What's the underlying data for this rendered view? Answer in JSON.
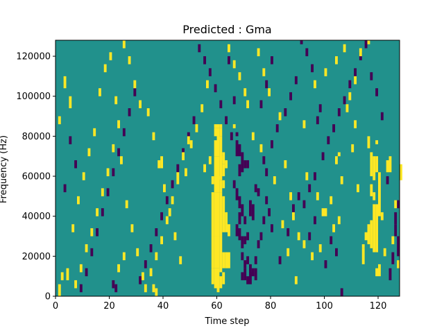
{
  "chart_data": {
    "type": "heatmap",
    "title": "Predicted : Gma",
    "xlabel": "Time step",
    "ylabel": "Frequency (Hz)",
    "xlim": [
      0,
      128
    ],
    "ylim": [
      0,
      128000
    ],
    "xticks": [
      0,
      20,
      40,
      60,
      80,
      100,
      120
    ],
    "yticks": [
      0,
      20000,
      40000,
      60000,
      80000,
      100000,
      120000
    ],
    "colors": {
      "background": "#21918c",
      "high": "#fde725",
      "low": "#440154"
    },
    "cell_size": {
      "time_step": 1,
      "frequency_hz": 2000
    },
    "background_level": 0,
    "high_cells": [
      [
        59,
        84000,
        86000
      ],
      [
        60,
        84000,
        86000
      ],
      [
        61,
        84000,
        86000
      ],
      [
        59,
        80000,
        84000
      ],
      [
        60,
        78000,
        84000
      ],
      [
        61,
        80000,
        84000
      ],
      [
        59,
        70000,
        78000
      ],
      [
        60,
        70000,
        80000
      ],
      [
        61,
        68000,
        80000
      ],
      [
        62,
        66000,
        72000
      ],
      [
        59,
        60000,
        70000
      ],
      [
        60,
        58000,
        70000
      ],
      [
        61,
        58000,
        70000
      ],
      [
        62,
        60000,
        66000
      ],
      [
        58,
        56000,
        60000
      ],
      [
        59,
        52000,
        60000
      ],
      [
        60,
        52000,
        60000
      ],
      [
        61,
        52000,
        58000
      ],
      [
        62,
        54000,
        58000
      ],
      [
        58,
        30000,
        52000
      ],
      [
        59,
        30000,
        52000
      ],
      [
        60,
        30000,
        52000
      ],
      [
        61,
        30000,
        52000
      ],
      [
        62,
        32000,
        50000
      ],
      [
        58,
        14000,
        30000
      ],
      [
        59,
        14000,
        30000
      ],
      [
        60,
        14000,
        30000
      ],
      [
        61,
        12000,
        30000
      ],
      [
        62,
        14000,
        22000
      ],
      [
        58,
        6000,
        14000
      ],
      [
        59,
        4000,
        14000
      ],
      [
        60,
        2000,
        14000
      ],
      [
        61,
        4000,
        10000
      ],
      [
        62,
        6000,
        12000
      ],
      [
        63,
        14000,
        22000
      ],
      [
        64,
        14000,
        22000
      ],
      [
        63,
        32000,
        42000
      ],
      [
        64,
        30000,
        36000
      ],
      [
        63,
        64000,
        68000
      ],
      [
        57,
        66000,
        70000
      ],
      [
        66,
        84000,
        86000
      ],
      [
        118,
        22000,
        46000
      ],
      [
        119,
        22000,
        46000
      ],
      [
        117,
        24000,
        38000
      ],
      [
        120,
        40000,
        56000
      ],
      [
        116,
        26000,
        36000
      ],
      [
        114,
        24000,
        26000
      ],
      [
        119,
        10000,
        14000
      ],
      [
        120,
        10000,
        16000
      ],
      [
        115,
        28000,
        32000
      ],
      [
        114,
        16000,
        24000
      ],
      [
        117,
        60000,
        72000
      ],
      [
        118,
        58000,
        70000
      ],
      [
        119,
        62000,
        70000
      ],
      [
        120,
        56000,
        62000
      ],
      [
        117,
        50000,
        56000
      ],
      [
        118,
        48000,
        52000
      ],
      [
        116,
        74000,
        80000
      ],
      [
        119,
        76000,
        78000
      ],
      [
        124,
        62000,
        70000
      ],
      [
        125,
        26000,
        30000
      ],
      [
        121,
        38000,
        42000
      ],
      [
        127,
        14000,
        18000
      ],
      [
        122,
        20000,
        24000
      ],
      [
        123,
        62000,
        68000
      ],
      [
        128,
        58000,
        66000
      ],
      [
        126,
        44000,
        48000
      ],
      [
        112,
        52000,
        56000
      ],
      [
        110,
        72000,
        76000
      ],
      [
        111,
        84000,
        88000
      ],
      [
        106,
        56000,
        60000
      ],
      [
        105,
        70000,
        72000
      ],
      [
        92,
        84000,
        88000
      ],
      [
        85,
        64000,
        68000
      ],
      [
        87,
        48000,
        52000
      ],
      [
        88,
        38000,
        42000
      ],
      [
        90,
        28000,
        32000
      ],
      [
        92,
        24000,
        28000
      ],
      [
        95,
        18000,
        22000
      ],
      [
        98,
        22000,
        26000
      ],
      [
        100,
        40000,
        44000
      ],
      [
        102,
        46000,
        50000
      ],
      [
        104,
        66000,
        70000
      ],
      [
        108,
        92000,
        96000
      ],
      [
        109,
        98000,
        102000
      ],
      [
        111,
        106000,
        110000
      ],
      [
        113,
        120000,
        124000
      ],
      [
        116,
        126000,
        128000
      ],
      [
        96,
        104000,
        108000
      ],
      [
        100,
        110000,
        114000
      ],
      [
        104,
        116000,
        120000
      ],
      [
        107,
        122000,
        126000
      ],
      [
        83,
        88000,
        92000
      ],
      [
        79,
        100000,
        104000
      ],
      [
        77,
        110000,
        114000
      ],
      [
        75,
        120000,
        124000
      ],
      [
        70,
        100000,
        104000
      ],
      [
        68,
        108000,
        112000
      ],
      [
        66,
        114000,
        118000
      ],
      [
        64,
        122000,
        126000
      ],
      [
        56,
        104000,
        108000
      ],
      [
        54,
        92000,
        96000
      ],
      [
        52,
        82000,
        86000
      ],
      [
        49,
        76000,
        80000
      ],
      [
        47,
        68000,
        72000
      ],
      [
        45,
        56000,
        62000
      ],
      [
        43,
        46000,
        50000
      ],
      [
        41,
        36000,
        40000
      ],
      [
        39,
        26000,
        30000
      ],
      [
        37,
        18000,
        22000
      ],
      [
        35,
        10000,
        14000
      ],
      [
        33,
        2000,
        6000
      ],
      [
        31,
        94000,
        98000
      ],
      [
        29,
        104000,
        108000
      ],
      [
        27,
        116000,
        120000
      ],
      [
        25,
        124000,
        128000
      ],
      [
        23,
        84000,
        88000
      ],
      [
        21,
        72000,
        76000
      ],
      [
        19,
        60000,
        64000
      ],
      [
        17,
        50000,
        54000
      ],
      [
        15,
        40000,
        44000
      ],
      [
        13,
        30000,
        34000
      ],
      [
        11,
        22000,
        26000
      ],
      [
        9,
        12000,
        16000
      ],
      [
        7,
        4000,
        8000
      ],
      [
        5,
        94000,
        100000
      ],
      [
        3,
        104000,
        110000
      ],
      [
        1,
        86000,
        90000
      ],
      [
        4,
        8000,
        14000
      ],
      [
        6,
        32000,
        36000
      ],
      [
        8,
        46000,
        50000
      ],
      [
        10,
        58000,
        62000
      ],
      [
        12,
        70000,
        74000
      ],
      [
        14,
        80000,
        84000
      ],
      [
        16,
        100000,
        104000
      ],
      [
        18,
        112000,
        116000
      ],
      [
        20,
        118000,
        122000
      ],
      [
        22,
        96000,
        100000
      ],
      [
        24,
        66000,
        70000
      ],
      [
        26,
        44000,
        48000
      ],
      [
        28,
        32000,
        36000
      ],
      [
        30,
        20000,
        24000
      ],
      [
        32,
        8000,
        12000
      ],
      [
        34,
        90000,
        94000
      ],
      [
        36,
        78000,
        82000
      ],
      [
        38,
        64000,
        68000
      ],
      [
        40,
        52000,
        56000
      ],
      [
        42,
        40000,
        44000
      ],
      [
        44,
        28000,
        32000
      ],
      [
        46,
        16000,
        20000
      ],
      [
        48,
        60000,
        64000
      ],
      [
        50,
        74000,
        78000
      ],
      [
        55,
        62000,
        66000
      ],
      [
        71,
        94000,
        98000
      ],
      [
        73,
        78000,
        82000
      ],
      [
        76,
        72000,
        76000
      ],
      [
        81,
        56000,
        60000
      ],
      [
        84,
        34000,
        38000
      ],
      [
        86,
        20000,
        24000
      ],
      [
        89,
        6000,
        10000
      ],
      [
        93,
        58000,
        62000
      ],
      [
        97,
        48000,
        52000
      ],
      [
        99,
        40000,
        44000
      ],
      [
        103,
        32000,
        36000
      ],
      [
        105,
        36000,
        40000
      ],
      [
        39,
        64000,
        70000
      ],
      [
        2,
        8000,
        12000
      ],
      [
        1,
        0,
        6000
      ],
      [
        36,
        2000,
        6000
      ],
      [
        37,
        0,
        4000
      ],
      [
        23,
        12000,
        16000
      ],
      [
        25,
        18000,
        22000
      ]
    ],
    "low_cells": [
      [
        67,
        80000,
        82000
      ],
      [
        67,
        70000,
        78000
      ],
      [
        68,
        70000,
        76000
      ],
      [
        69,
        62000,
        72000
      ],
      [
        68,
        60000,
        66000
      ],
      [
        70,
        64000,
        68000
      ],
      [
        71,
        64000,
        68000
      ],
      [
        66,
        54000,
        58000
      ],
      [
        67,
        48000,
        54000
      ],
      [
        68,
        44000,
        50000
      ],
      [
        69,
        40000,
        46000
      ],
      [
        68,
        36000,
        42000
      ],
      [
        67,
        30000,
        36000
      ],
      [
        68,
        28000,
        34000
      ],
      [
        69,
        24000,
        30000
      ],
      [
        70,
        26000,
        30000
      ],
      [
        71,
        28000,
        32000
      ],
      [
        70,
        36000,
        40000
      ],
      [
        72,
        40000,
        48000
      ],
      [
        73,
        38000,
        46000
      ],
      [
        69,
        18000,
        22000
      ],
      [
        70,
        14000,
        18000
      ],
      [
        71,
        16000,
        20000
      ],
      [
        72,
        10000,
        16000
      ],
      [
        73,
        10000,
        14000
      ],
      [
        74,
        8000,
        14000
      ],
      [
        69,
        8000,
        12000
      ],
      [
        70,
        8000,
        14000
      ],
      [
        71,
        6000,
        10000
      ],
      [
        72,
        6000,
        12000
      ],
      [
        74,
        16000,
        20000
      ],
      [
        75,
        24000,
        28000
      ],
      [
        76,
        28000,
        32000
      ],
      [
        77,
        36000,
        40000
      ],
      [
        74,
        52000,
        56000
      ],
      [
        75,
        50000,
        54000
      ],
      [
        78,
        60000,
        64000
      ],
      [
        78,
        46000,
        50000
      ],
      [
        79,
        40000,
        44000
      ],
      [
        80,
        32000,
        36000
      ],
      [
        83,
        16000,
        20000
      ],
      [
        86,
        30000,
        34000
      ],
      [
        88,
        40000,
        46000
      ],
      [
        90,
        48000,
        52000
      ],
      [
        92,
        44000,
        48000
      ],
      [
        94,
        52000,
        56000
      ],
      [
        96,
        58000,
        62000
      ],
      [
        99,
        68000,
        72000
      ],
      [
        101,
        76000,
        80000
      ],
      [
        103,
        82000,
        86000
      ],
      [
        105,
        90000,
        94000
      ],
      [
        107,
        96000,
        100000
      ],
      [
        109,
        104000,
        108000
      ],
      [
        111,
        110000,
        114000
      ],
      [
        113,
        118000,
        122000
      ],
      [
        115,
        124000,
        128000
      ],
      [
        126,
        30000,
        36000
      ],
      [
        127,
        20000,
        30000
      ],
      [
        125,
        16000,
        22000
      ],
      [
        124,
        8000,
        14000
      ],
      [
        126,
        36000,
        42000
      ],
      [
        127,
        44000,
        48000
      ],
      [
        123,
        56000,
        60000
      ],
      [
        121,
        88000,
        92000
      ],
      [
        119,
        100000,
        104000
      ],
      [
        117,
        108000,
        112000
      ],
      [
        98,
        92000,
        96000
      ],
      [
        97,
        86000,
        90000
      ],
      [
        95,
        112000,
        116000
      ],
      [
        93,
        120000,
        124000
      ],
      [
        91,
        126000,
        128000
      ],
      [
        89,
        106000,
        110000
      ],
      [
        87,
        98000,
        102000
      ],
      [
        85,
        90000,
        94000
      ],
      [
        82,
        82000,
        86000
      ],
      [
        80,
        74000,
        78000
      ],
      [
        77,
        66000,
        70000
      ],
      [
        65,
        78000,
        82000
      ],
      [
        63,
        86000,
        90000
      ],
      [
        61,
        94000,
        98000
      ],
      [
        59,
        102000,
        106000
      ],
      [
        57,
        110000,
        114000
      ],
      [
        55,
        116000,
        120000
      ],
      [
        53,
        122000,
        126000
      ],
      [
        51,
        86000,
        90000
      ],
      [
        49,
        78000,
        82000
      ],
      [
        47,
        70000,
        74000
      ],
      [
        45,
        62000,
        66000
      ],
      [
        43,
        54000,
        58000
      ],
      [
        41,
        46000,
        50000
      ],
      [
        39,
        38000,
        42000
      ],
      [
        37,
        30000,
        34000
      ],
      [
        35,
        22000,
        26000
      ],
      [
        33,
        14000,
        18000
      ],
      [
        31,
        6000,
        10000
      ],
      [
        29,
        100000,
        104000
      ],
      [
        27,
        90000,
        94000
      ],
      [
        25,
        80000,
        84000
      ],
      [
        23,
        70000,
        74000
      ],
      [
        21,
        60000,
        64000
      ],
      [
        19,
        50000,
        54000
      ],
      [
        17,
        40000,
        44000
      ],
      [
        15,
        30000,
        34000
      ],
      [
        13,
        20000,
        24000
      ],
      [
        11,
        10000,
        14000
      ],
      [
        9,
        2000,
        6000
      ],
      [
        7,
        64000,
        68000
      ],
      [
        5,
        76000,
        80000
      ],
      [
        3,
        52000,
        56000
      ],
      [
        21,
        4000,
        8000
      ],
      [
        22,
        2000,
        6000
      ],
      [
        106,
        0,
        4000
      ],
      [
        104,
        20000,
        24000
      ],
      [
        102,
        26000,
        30000
      ],
      [
        100,
        14000,
        18000
      ],
      [
        96,
        36000,
        40000
      ],
      [
        94,
        28000,
        32000
      ],
      [
        64,
        116000,
        120000
      ],
      [
        66,
        96000,
        100000
      ],
      [
        78,
        104000,
        108000
      ],
      [
        80,
        116000,
        120000
      ],
      [
        76,
        94000,
        98000
      ]
    ]
  }
}
